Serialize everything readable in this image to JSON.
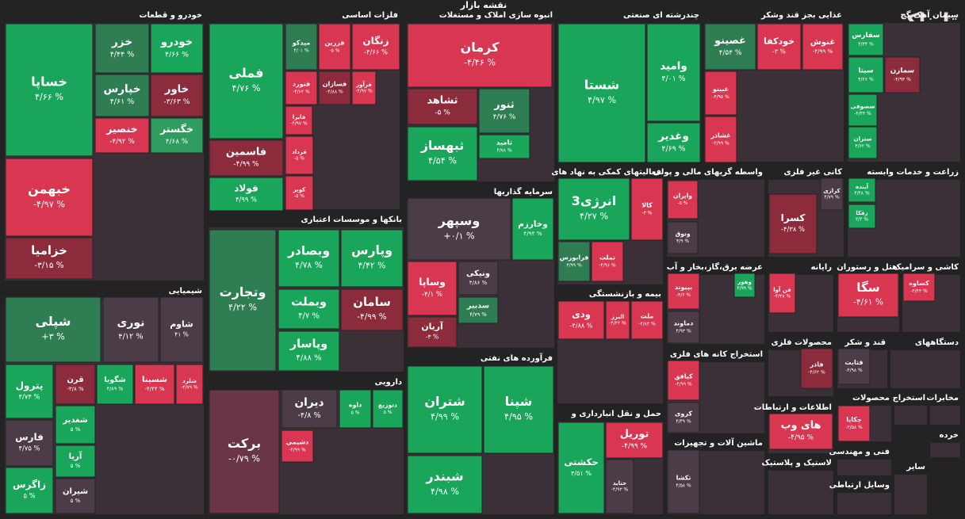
{
  "title": "نقشه بازار",
  "brand": "تابناک",
  "sectors": [
    {
      "name": "خودرو و قطعات",
      "tiles": [
        {
          "name": "خساپا",
          "change": "۴/۶۶ %",
          "color": "#19a65b"
        },
        {
          "name": "خبهمن",
          "change": "-۴/۹۷ %",
          "color": "#d93651"
        },
        {
          "name": "خزامیا",
          "change": "-۳/۱۵ %",
          "color": "#8c2b3c"
        },
        {
          "name": "خزر",
          "change": "۴/۴۴ %",
          "color": "#2f7d52"
        },
        {
          "name": "خودرو",
          "change": "۴/۶۶ %",
          "color": "#19a65b"
        },
        {
          "name": "خپارس",
          "change": "۴/۶۱ %",
          "color": "#2f7d52"
        },
        {
          "name": "خاور",
          "change": "-۳/۶۳ %",
          "color": "#8c2b3c"
        },
        {
          "name": "خنصیر",
          "change": "-۴/۹۲ %",
          "color": "#d93651"
        },
        {
          "name": "خگستر",
          "change": "۴/۶۸ %",
          "color": "#2e9d5f"
        }
      ]
    },
    {
      "name": "فلزات اساسی",
      "tiles": [
        {
          "name": "فملی",
          "change": "۴/۷۶ %",
          "color": "#19a65b"
        },
        {
          "name": "میدکو",
          "change": "۴/۰۱ %",
          "color": "#2f7d52"
        },
        {
          "name": "فزرین",
          "change": "-۵ %",
          "color": "#d93651"
        },
        {
          "name": "زنگان",
          "change": "-۴/۶۶ %",
          "color": "#d93651"
        },
        {
          "name": "فنورد",
          "change": "-۴/۶۲ %",
          "color": "#d93651"
        },
        {
          "name": "فسازان",
          "change": "-۴/۸۸ %",
          "color": "#8c2b3c"
        },
        {
          "name": "فرآور",
          "change": "-۴/۹۷ %",
          "color": "#d93651"
        },
        {
          "name": "فاسمین",
          "change": "-۴/۹۹ %",
          "color": "#8c2b3c"
        },
        {
          "name": "فولاد",
          "change": "۴/۹۹ %",
          "color": "#19a65b"
        },
        {
          "name": "فایرا",
          "change": "-۴/۹۷ %",
          "color": "#d93651"
        },
        {
          "name": "فرداد",
          "change": "-۵ %",
          "color": "#d93651"
        },
        {
          "name": "کویر",
          "change": "-۵ %",
          "color": "#d93651"
        }
      ]
    },
    {
      "name": "انبوه سازی املاک و مستغلات",
      "tiles": [
        {
          "name": "کرمان",
          "change": "-۴/۴۶ %",
          "color": "#d93651"
        },
        {
          "name": "ثشاهد",
          "change": "-۵ %",
          "color": "#8c2b3c"
        },
        {
          "name": "ثنور",
          "change": "۴/۷۶ %",
          "color": "#2f7d52"
        },
        {
          "name": "ثبهساز",
          "change": "۴/۵۴ %",
          "color": "#19a65b"
        },
        {
          "name": "ثامید",
          "change": "۴/۷۸ %",
          "color": "#19a65b"
        }
      ]
    },
    {
      "name": "چندرشته ای صنعتی",
      "tiles": [
        {
          "name": "شستا",
          "change": "۴/۹۷ %",
          "color": "#19a65b"
        },
        {
          "name": "وامید",
          "change": "۴/۰۱ %",
          "color": "#19a65b"
        },
        {
          "name": "وغدیر",
          "change": "۴/۶۹ %",
          "color": "#19a65b"
        }
      ]
    },
    {
      "name": "غذایی بجز قند وشکر",
      "tiles": [
        {
          "name": "غنوش",
          "change": "-۴/۹۹ %",
          "color": "#d93651"
        },
        {
          "name": "خودکفا",
          "change": "-۳ %",
          "color": "#d93651"
        },
        {
          "name": "غصینو",
          "change": "۴/۵۴ %",
          "color": "#2f7d52"
        },
        {
          "name": "غبینو",
          "change": "-۴/۹۵ %",
          "color": "#d93651"
        },
        {
          "name": "غشاذر",
          "change": "-۴/۹۹ %",
          "color": "#d93651"
        }
      ]
    },
    {
      "name": "سیمان آهک گچ",
      "tiles": [
        {
          "name": "سفارس",
          "change": "۴/۴۴ %",
          "color": "#19a65b"
        },
        {
          "name": "سیتا",
          "change": "۴/۲۶ %",
          "color": "#19a65b"
        },
        {
          "name": "سمازن",
          "change": "-۴/۹۴ %",
          "color": "#8c2b3c"
        },
        {
          "name": "سصوفی",
          "change": "-۴/۴۴ %",
          "color": "#19a65b"
        },
        {
          "name": "ستران",
          "change": "۴/۶۲ %",
          "color": "#19a65b"
        }
      ]
    },
    {
      "name": "شیمیایی",
      "tiles": [
        {
          "name": "شپلی",
          "change": "+۳ %",
          "color": "#2f7d52"
        },
        {
          "name": "نوری",
          "change": "۴/۱۲ %",
          "color": "#4b3c48"
        },
        {
          "name": "شاوم",
          "change": "۴۱ %",
          "color": "#4b3c48"
        },
        {
          "name": "پترول",
          "change": "۴/۷۴ %",
          "color": "#19a65b"
        },
        {
          "name": "قرن",
          "change": "-۳/۸ %",
          "color": "#8c2b3c"
        },
        {
          "name": "شگویا",
          "change": "۴/۸۹ %",
          "color": "#19a65b"
        },
        {
          "name": "شسینا",
          "change": "-۴/۴۴ %",
          "color": "#d93651"
        },
        {
          "name": "شلرد",
          "change": "-۴/۷۹ %",
          "color": "#d93651"
        },
        {
          "name": "فارس",
          "change": "۴/۷۵ %",
          "color": "#4b3c48"
        },
        {
          "name": "زاگرس",
          "change": "۵ %",
          "color": "#19a65b"
        },
        {
          "name": "شغدیر",
          "change": "۵ %",
          "color": "#19a65b"
        },
        {
          "name": "آریا",
          "change": "۵ %",
          "color": "#19a65b"
        },
        {
          "name": "شیران",
          "change": "۵ %",
          "color": "#4b3c48"
        }
      ]
    },
    {
      "name": "بانکها و موسسات اعتباری",
      "tiles": [
        {
          "name": "وتجارت",
          "change": "۴/۲۲ %",
          "color": "#2f7d52"
        },
        {
          "name": "وبصادر",
          "change": "۴/۷۸ %",
          "color": "#19a65b"
        },
        {
          "name": "وپارس",
          "change": "۴/۴۲ %",
          "color": "#19a65b"
        },
        {
          "name": "وبملت",
          "change": "۴/۷ %",
          "color": "#19a65b"
        },
        {
          "name": "سامان",
          "change": "-۴/۹۹ %",
          "color": "#8c2b3c"
        },
        {
          "name": "وپاسار",
          "change": "۴/۸۸ %",
          "color": "#19a65b"
        }
      ]
    },
    {
      "name": "دارویی",
      "tiles": [
        {
          "name": "برکت",
          "change": "-۰/۷۹ %",
          "color": "#6a3645"
        },
        {
          "name": "دیران",
          "change": "-۴/۸ %",
          "color": "#4b3c48"
        },
        {
          "name": "داوه",
          "change": "۵ %",
          "color": "#19a65b"
        },
        {
          "name": "دتوزیع",
          "change": "۵ %",
          "color": "#19a65b"
        },
        {
          "name": "دشیمی",
          "change": "-۴/۹۹ %",
          "color": "#d93651"
        }
      ]
    },
    {
      "name": "سرمایه گذاریها",
      "tiles": [
        {
          "name": "وسپهر",
          "change": "+۰/۱ %",
          "color": "#4b3c48"
        },
        {
          "name": "وخارزم",
          "change": "۴/۹۴ %",
          "color": "#19a65b"
        },
        {
          "name": "وساپا",
          "change": "-۴/۱ %",
          "color": "#d93651"
        },
        {
          "name": "ونیکی",
          "change": "۴/۸۶ %",
          "color": "#4b3c48"
        },
        {
          "name": "سدبیر",
          "change": "۴/۷۹ %",
          "color": "#2f7d52"
        },
        {
          "name": "آریان",
          "change": "-۳ %",
          "color": "#8c2b3c"
        }
      ]
    },
    {
      "name": "فرآورده های نفتی",
      "tiles": [
        {
          "name": "شتران",
          "change": "۴/۹۹ %",
          "color": "#19a65b"
        },
        {
          "name": "شپنا",
          "change": "۴/۹۵ %",
          "color": "#19a65b"
        },
        {
          "name": "شبندر",
          "change": "۴/۹۸ %",
          "color": "#19a65b"
        }
      ]
    },
    {
      "name": "فعالیتهای کمکی به نهاد های",
      "tiles": [
        {
          "name": "انرژی3",
          "change": "۴/۲۷ %",
          "color": "#19a65b"
        },
        {
          "name": "کالا",
          "change": "-۳ %",
          "color": "#d93651"
        },
        {
          "name": "فرابورس",
          "change": "۴/۹۹ %",
          "color": "#2f7d52"
        },
        {
          "name": "تملت",
          "change": "-۴/۹۶ %",
          "color": "#d93651"
        }
      ]
    },
    {
      "name": "بیمه و بازنشستگی",
      "tiles": [
        {
          "name": "ودی",
          "change": "-۴/۸۸ %",
          "color": "#d93651"
        },
        {
          "name": "البرز",
          "change": "-۴/۲۲ %",
          "color": "#d93651"
        },
        {
          "name": "ملت",
          "change": "-۴/۸۳ %",
          "color": "#d93651"
        }
      ]
    },
    {
      "name": "حمل و نقل انبارداری و",
      "tiles": [
        {
          "name": "حکشتی",
          "change": "۴/۵۱ %",
          "color": "#19a65b"
        },
        {
          "name": "توریل",
          "change": "-۴/۹۹ %",
          "color": "#d93651"
        },
        {
          "name": "حتاید",
          "change": "-۴/۹۳ %",
          "color": "#4b3c48"
        }
      ]
    },
    {
      "name": "واسطه گریهای مالی و پولی",
      "tiles": [
        {
          "name": "وایران",
          "change": "-۵ %",
          "color": "#d93651"
        },
        {
          "name": "وتوق",
          "change": "۴/۹ %",
          "color": "#4b3c48"
        }
      ]
    },
    {
      "name": "عرضه برق،گاز،بخار و آب",
      "tiles": [
        {
          "name": "بپیوند",
          "change": "-۴/۶ %",
          "color": "#d93651"
        },
        {
          "name": "وهور",
          "change": "۴/۹۹ %",
          "color": "#19a65b"
        },
        {
          "name": "دماوند",
          "change": "۴/۹۳ %",
          "color": "#4b3c48"
        }
      ]
    },
    {
      "name": "استخراج کانه های فلزی",
      "tiles": [
        {
          "name": "کیافق",
          "change": "-۴/۹۹ %",
          "color": "#d93651"
        },
        {
          "name": "کروی",
          "change": "۴/۴۹ %",
          "color": "#4b3c48"
        }
      ]
    },
    {
      "name": "ماشین آلات و تجهیزات",
      "tiles": [
        {
          "name": "تکشا",
          "change": "۴/۵۸ %",
          "color": "#4b3c48"
        }
      ]
    },
    {
      "name": "کانی غیر فلزی",
      "tiles": [
        {
          "name": "کسرا",
          "change": "-۴/۳۸ %",
          "color": "#8c2b3c"
        },
        {
          "name": "کرازی",
          "change": "۴/۷۹ %",
          "color": "#4b3c48"
        }
      ]
    },
    {
      "name": "زراعت و خدمات وابسته",
      "tiles": [
        {
          "name": "آینده",
          "change": "۴/۴۸ %",
          "color": "#19a65b"
        },
        {
          "name": "زفکا",
          "change": "۴/۴ %",
          "color": "#19a65b"
        }
      ]
    },
    {
      "name": "رایانه",
      "tiles": [
        {
          "name": "فن آوا",
          "change": "-۴/۳۸ %",
          "color": "#d93651"
        }
      ]
    },
    {
      "name": "هتل و رستوران",
      "tiles": [
        {
          "name": "سگا",
          "change": "-۴/۶۱ %",
          "color": "#d93651"
        }
      ]
    },
    {
      "name": "کاشی و سرامیک",
      "tiles": [
        {
          "name": "کساوه",
          "change": "-۴/۴۴ %",
          "color": "#d93651"
        }
      ]
    },
    {
      "name": "محصولات فلزی",
      "tiles": [
        {
          "name": "فاذر",
          "change": "-۴/۶۲ %",
          "color": "#8c2b3c"
        }
      ]
    },
    {
      "name": "قند و شکر",
      "tiles": [
        {
          "name": "قثابت",
          "change": "-۴/۹۸ %",
          "color": "#4b3c48"
        }
      ]
    },
    {
      "name": "دستگاههای",
      "tiles": []
    },
    {
      "name": "اطلاعات و ارتباطات",
      "tiles": [
        {
          "name": "های وب",
          "change": "-۴/۹۵ %",
          "color": "#d93651"
        }
      ]
    },
    {
      "name": "محصولات",
      "tiles": [
        {
          "name": "چکاپا",
          "change": "-۴/۵۸ %",
          "color": "#d93651"
        }
      ]
    },
    {
      "name": "استخراج",
      "tiles": []
    },
    {
      "name": "مخابرات",
      "tiles": []
    },
    {
      "name": "لاستیک و پلاستیک",
      "tiles": []
    },
    {
      "name": "فنی و مهندسی",
      "tiles": []
    },
    {
      "name": "خرده",
      "tiles": []
    },
    {
      "name": "وسایل ارتباطی",
      "tiles": []
    },
    {
      "name": "سایر",
      "tiles": []
    }
  ]
}
